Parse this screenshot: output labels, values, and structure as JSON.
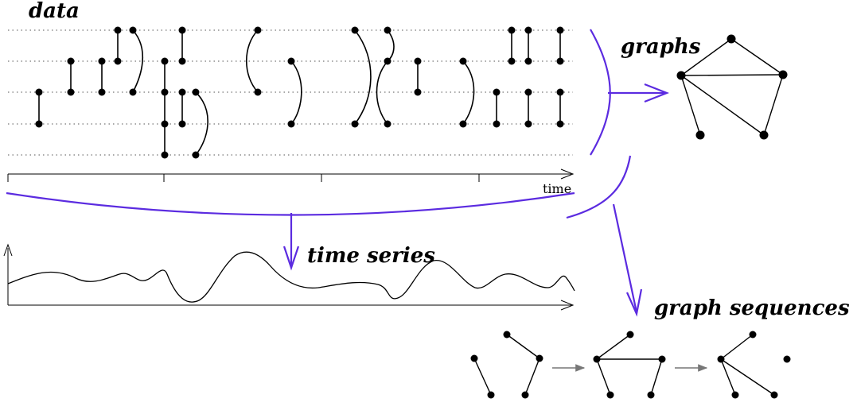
{
  "labels": {
    "data": "data",
    "time_axis": "time",
    "graphs": "graphs",
    "time_series": "time series",
    "graph_sequences": "graph sequences"
  },
  "colors": {
    "accent": "#5b2be0",
    "ink": "#000000",
    "grid": "#555555",
    "seq_arrow": "#777777"
  },
  "icons": {
    "flow_arrows": "arrow-icon",
    "nodes": "dot-icon"
  }
}
